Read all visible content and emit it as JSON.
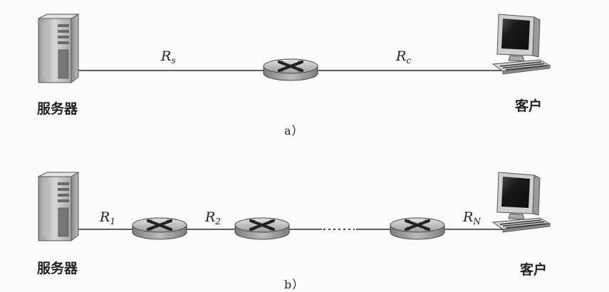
{
  "diagram_a": {
    "server_label": "服务器",
    "client_label": "客户",
    "rate_server": {
      "symbol": "R",
      "sub": "s"
    },
    "rate_client": {
      "symbol": "R",
      "sub": "c"
    },
    "caption": "a）"
  },
  "diagram_b": {
    "server_label": "服务器",
    "client_label": "客户",
    "rate_1": {
      "symbol": "R",
      "sub": "1"
    },
    "rate_2": {
      "symbol": "R",
      "sub": "2"
    },
    "rate_n": {
      "symbol": "R",
      "sub": "N"
    },
    "caption": "b）"
  },
  "colors": {
    "link": "#2a2a2a",
    "router_body": "#9a9a9a",
    "tower_body": "#c8c8c8",
    "monitor_bezel": "#b8b8b8",
    "screen": "#141414"
  }
}
